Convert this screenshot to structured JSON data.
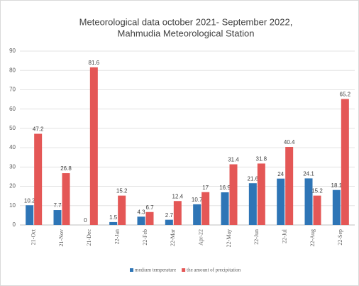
{
  "chart_data": {
    "type": "bar",
    "title": [
      "Meteorological data october 2021- September 2022,",
      "Mahmudia Meteorological Station"
    ],
    "categories": [
      "21-Oct",
      "21-Nov",
      "21-Dec",
      "22-Jan",
      "22-Feb",
      "22-Mar",
      "Apr-22",
      "22-May",
      "22-Jun",
      "22-Jul",
      "22-Aug",
      "22-Sep"
    ],
    "series": [
      {
        "name": "medium temperature",
        "color": "#2e75b6",
        "values": [
          10.2,
          7.7,
          0,
          1.5,
          4.3,
          2.7,
          10.7,
          16.9,
          21.6,
          24,
          24.1,
          18.1
        ]
      },
      {
        "name": "the amount of precipitation",
        "color": "#e45756",
        "values": [
          47.2,
          26.8,
          81.6,
          15.2,
          6.7,
          12.4,
          17,
          31.4,
          31.8,
          40.4,
          15.2,
          65.2
        ]
      }
    ],
    "ylim": [
      0,
      90
    ],
    "yticks": [
      0,
      10,
      20,
      30,
      40,
      50,
      60,
      70,
      80,
      90
    ],
    "grid": true,
    "legend": "bottom"
  }
}
